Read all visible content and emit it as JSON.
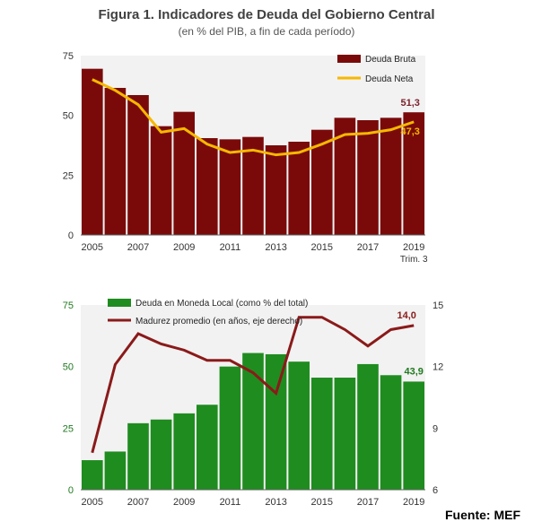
{
  "title": "Figura 1. Indicadores de Deuda del Gobierno Central",
  "subtitle": "(en % del PIB, a fin de cada período)",
  "source": "Fuente: MEF",
  "colors": {
    "bruta": "#7a0a0a",
    "neta": "#f5b800",
    "local": "#1f8c1f",
    "madurez": "#8b1a1a",
    "label_bruta": "#7a1f2a",
    "label_neta": "#f5b800",
    "label_local": "#1f7a1f",
    "plot_bg": "#f2f2f2"
  },
  "chart_data": [
    {
      "type": "bar",
      "categories": [
        "2005",
        "2006",
        "2007",
        "2008",
        "2009",
        "2010",
        "2011",
        "2012",
        "2013",
        "2014",
        "2015",
        "2016",
        "2017",
        "2018",
        "2019"
      ],
      "x_tick_labels": [
        "2005",
        "2007",
        "2009",
        "2011",
        "2013",
        "2015",
        "2017",
        "2019"
      ],
      "x_tick_sublabel": "Trim. 3",
      "ylim": [
        0,
        75
      ],
      "yticks": [
        0,
        25,
        50,
        75
      ],
      "legend": "top-right",
      "series": [
        {
          "name": "Deuda Bruta",
          "kind": "bar",
          "values": [
            69.5,
            61.5,
            58.5,
            45.5,
            51.5,
            40.5,
            40,
            41,
            37.5,
            39,
            44,
            49,
            48,
            49,
            51.3
          ]
        },
        {
          "name": "Deuda Neta",
          "kind": "line",
          "values": [
            65,
            60.5,
            54.5,
            43,
            44.5,
            38,
            34.5,
            35.5,
            33.5,
            34.5,
            38,
            42,
            42.5,
            44,
            47.3
          ]
        }
      ],
      "annotations": [
        {
          "text": "51,3",
          "series": "Deuda Bruta"
        },
        {
          "text": "47,3",
          "series": "Deuda Neta"
        }
      ]
    },
    {
      "type": "bar",
      "categories": [
        "2005",
        "2006",
        "2007",
        "2008",
        "2009",
        "2010",
        "2011",
        "2012",
        "2013",
        "2014",
        "2015",
        "2016",
        "2017",
        "2018",
        "2019"
      ],
      "x_tick_labels": [
        "2005",
        "2007",
        "2009",
        "2011",
        "2013",
        "2015",
        "2017",
        "2019"
      ],
      "ylim": [
        0,
        75
      ],
      "yticks": [
        0,
        25,
        50,
        75
      ],
      "y2lim": [
        6,
        15
      ],
      "y2ticks": [
        6,
        9,
        12,
        15
      ],
      "legend": "top-left",
      "series": [
        {
          "name": "Deuda en Moneda Local (como % del total)",
          "kind": "bar",
          "axis": "left",
          "values": [
            12,
            15.5,
            27,
            28.5,
            31,
            34.5,
            50,
            55.5,
            55,
            52,
            45.5,
            45.5,
            51,
            46.5,
            43.9
          ]
        },
        {
          "name": "Madurez promedio (en años, eje derecho)",
          "kind": "line",
          "axis": "right",
          "values": [
            7.8,
            12.1,
            13.6,
            13.1,
            12.8,
            12.3,
            12.3,
            11.7,
            10.7,
            14.4,
            14.4,
            13.8,
            13,
            13.8,
            14.0
          ]
        }
      ],
      "annotations": [
        {
          "text": "14,0",
          "series": "Madurez promedio (en años, eje derecho)"
        },
        {
          "text": "43,9",
          "series": "Deuda en Moneda Local (como % del total)"
        }
      ]
    }
  ]
}
